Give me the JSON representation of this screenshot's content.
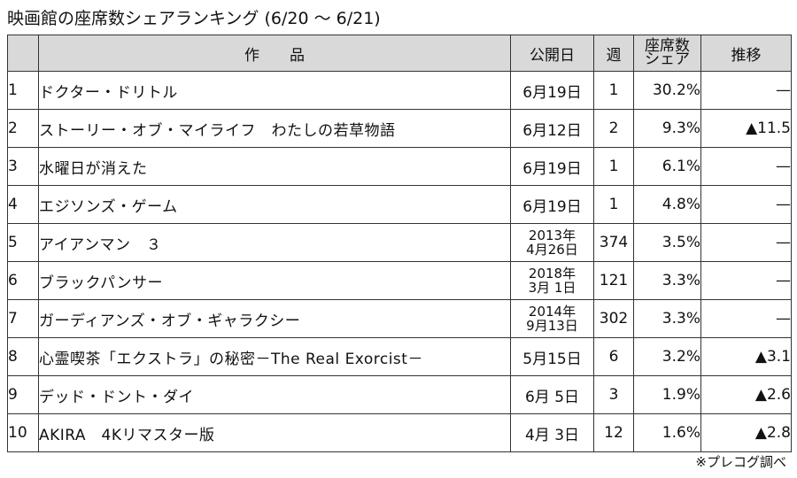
{
  "title": "映画館の座席数シェアランキング (6/20 ～ 6/21)",
  "headers": {
    "rank": "",
    "title": "作　　品",
    "release": "公開日",
    "weeks": "週",
    "share_line1": "座席数",
    "share_line2": "シェア",
    "trend": "推移"
  },
  "rows": [
    {
      "rank": "1",
      "title": "ドクター・ドリトル",
      "release": "6月19日",
      "weeks": "1",
      "share": "30.2%",
      "trend": "—"
    },
    {
      "rank": "2",
      "title": "ストーリー・オブ・マイライフ　わたしの若草物語",
      "release": "6月12日",
      "weeks": "2",
      "share": "9.3%",
      "trend": "▲11.5"
    },
    {
      "rank": "3",
      "title": "水曜日が消えた",
      "release": "6月19日",
      "weeks": "1",
      "share": "6.1%",
      "trend": "—"
    },
    {
      "rank": "4",
      "title": "エジソンズ・ゲーム",
      "release": "6月19日",
      "weeks": "1",
      "share": "4.8%",
      "trend": "—"
    },
    {
      "rank": "5",
      "title": "アイアンマン　３",
      "release_year": "2013年",
      "release_day": "4月26日",
      "weeks": "374",
      "share": "3.5%",
      "trend": "—"
    },
    {
      "rank": "6",
      "title": "ブラックパンサー",
      "release_year": "2018年",
      "release_day": "3月 1日",
      "weeks": "121",
      "share": "3.3%",
      "trend": "—"
    },
    {
      "rank": "7",
      "title": "ガーディアンズ・オブ・ギャラクシー",
      "release_year": "2014年",
      "release_day": "9月13日",
      "weeks": "302",
      "share": "3.3%",
      "trend": "—"
    },
    {
      "rank": "8",
      "title": "心霊喫茶「エクストラ」の秘密－The Real Exorcist－",
      "release": "5月15日",
      "weeks": "6",
      "share": "3.2%",
      "trend": "▲3.1"
    },
    {
      "rank": "9",
      "title": "デッド・ドント・ダイ",
      "release": "6月 5日",
      "weeks": "3",
      "share": "1.9%",
      "trend": "▲2.6"
    },
    {
      "rank": "10",
      "title": "AKIRA　4Kリマスター版",
      "release": "4月 3日",
      "weeks": "12",
      "share": "1.6%",
      "trend": "▲2.8"
    }
  ],
  "source": "※プレコグ調べ"
}
